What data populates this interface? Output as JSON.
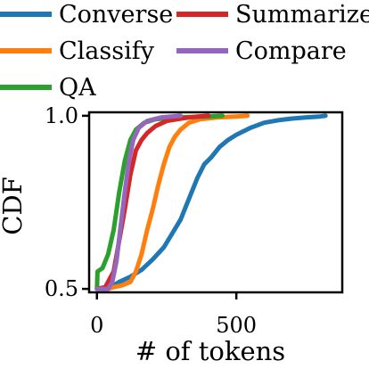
{
  "chart_data": {
    "type": "line",
    "xlabel": "# of tokens",
    "ylabel": "CDF",
    "xlim": [
      -28,
      880
    ],
    "ylim": [
      0.49,
      1.01
    ],
    "x_ticks": [
      0,
      500
    ],
    "y_ticks": [
      0.5,
      1.0
    ],
    "x_tick_labels": [
      "0",
      "500"
    ],
    "y_tick_labels": [
      "0.5",
      "1.0"
    ],
    "grid": false,
    "legend_placement": "top, outside plot",
    "series": [
      {
        "name": "Converse",
        "color": "#1f77b4",
        "points": [
          [
            0,
            0.5
          ],
          [
            40,
            0.5
          ],
          [
            80,
            0.52
          ],
          [
            120,
            0.535
          ],
          [
            160,
            0.555
          ],
          [
            200,
            0.585
          ],
          [
            240,
            0.62
          ],
          [
            270,
            0.66
          ],
          [
            300,
            0.7
          ],
          [
            330,
            0.76
          ],
          [
            360,
            0.82
          ],
          [
            385,
            0.86
          ],
          [
            410,
            0.88
          ],
          [
            440,
            0.91
          ],
          [
            470,
            0.93
          ],
          [
            500,
            0.945
          ],
          [
            550,
            0.965
          ],
          [
            600,
            0.98
          ],
          [
            650,
            0.987
          ],
          [
            700,
            0.992
          ],
          [
            750,
            0.995
          ],
          [
            800,
            0.998
          ],
          [
            820,
            1.0
          ]
        ]
      },
      {
        "name": "Classify",
        "color": "#ff7f0e",
        "points": [
          [
            0,
            0.5
          ],
          [
            40,
            0.5
          ],
          [
            60,
            0.505
          ],
          [
            90,
            0.51
          ],
          [
            120,
            0.52
          ],
          [
            140,
            0.55
          ],
          [
            160,
            0.6
          ],
          [
            180,
            0.67
          ],
          [
            200,
            0.73
          ],
          [
            220,
            0.8
          ],
          [
            240,
            0.86
          ],
          [
            260,
            0.91
          ],
          [
            280,
            0.94
          ],
          [
            300,
            0.96
          ],
          [
            330,
            0.98
          ],
          [
            370,
            0.99
          ],
          [
            430,
            0.995
          ],
          [
            500,
            0.998
          ],
          [
            540,
            1.0
          ]
        ]
      },
      {
        "name": "QA",
        "color": "#2ca02c",
        "points": [
          [
            0,
            0.5
          ],
          [
            2,
            0.55
          ],
          [
            20,
            0.56
          ],
          [
            40,
            0.6
          ],
          [
            60,
            0.67
          ],
          [
            80,
            0.78
          ],
          [
            100,
            0.87
          ],
          [
            120,
            0.93
          ],
          [
            140,
            0.96
          ],
          [
            170,
            0.98
          ],
          [
            210,
            0.99
          ],
          [
            280,
            0.995
          ],
          [
            400,
            0.998
          ],
          [
            450,
            1.0
          ]
        ]
      },
      {
        "name": "Summarize",
        "color": "#d62728",
        "points": [
          [
            0,
            0.5
          ],
          [
            30,
            0.505
          ],
          [
            60,
            0.55
          ],
          [
            80,
            0.64
          ],
          [
            100,
            0.73
          ],
          [
            120,
            0.83
          ],
          [
            140,
            0.9
          ],
          [
            160,
            0.93
          ],
          [
            180,
            0.95
          ],
          [
            210,
            0.97
          ],
          [
            250,
            0.985
          ],
          [
            310,
            0.993
          ],
          [
            360,
            0.998
          ],
          [
            400,
            1.0
          ]
        ]
      },
      {
        "name": "Compare",
        "color": "#9467bd",
        "points": [
          [
            0,
            0.5
          ],
          [
            40,
            0.5
          ],
          [
            55,
            0.52
          ],
          [
            70,
            0.58
          ],
          [
            85,
            0.68
          ],
          [
            100,
            0.78
          ],
          [
            115,
            0.87
          ],
          [
            130,
            0.93
          ],
          [
            150,
            0.965
          ],
          [
            180,
            0.985
          ],
          [
            230,
            0.995
          ],
          [
            300,
            1.0
          ]
        ]
      }
    ]
  }
}
